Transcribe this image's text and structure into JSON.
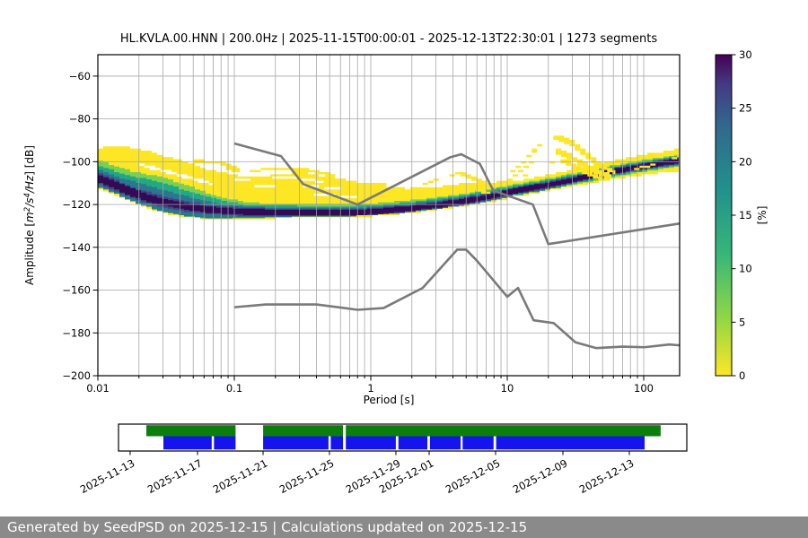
{
  "chart_data": {
    "type": "heatmap",
    "title": "HL.KVLA.00.HNN | 200.0Hz | 2025-11-15T00:00:01 - 2025-12-13T22:30:01 | 1273 segments",
    "station": "HL.KVLA.00.HNN",
    "sampling_rate": "200.0Hz",
    "time_range": "2025-11-15T00:00:01 - 2025-12-13T22:30:01",
    "segments": 1273,
    "xlabel": "Period [s]",
    "ylabel_parts": [
      {
        "t": "Amplitude [",
        "i": 0,
        "s": 0
      },
      {
        "t": "m",
        "i": 1,
        "s": 0
      },
      {
        "t": "2",
        "i": 1,
        "s": 1
      },
      {
        "t": "/",
        "i": 1,
        "s": 0
      },
      {
        "t": "s",
        "i": 1,
        "s": 0
      },
      {
        "t": "4",
        "i": 1,
        "s": 1
      },
      {
        "t": "/",
        "i": 1,
        "s": 0
      },
      {
        "t": "Hz",
        "i": 1,
        "s": 0
      },
      {
        "t": "] [dB]",
        "i": 0,
        "s": 0
      }
    ],
    "xlim": [
      0.01,
      183
    ],
    "ylim": [
      -200,
      -50
    ],
    "grid": true,
    "xticks": [
      {
        "v": 0.01,
        "label": "0.01"
      },
      {
        "v": 0.1,
        "label": "0.1"
      },
      {
        "v": 1,
        "label": "1"
      },
      {
        "v": 10,
        "label": "10"
      },
      {
        "v": 100,
        "label": "100"
      }
    ],
    "yticks": [
      {
        "v": -60,
        "label": "−60"
      },
      {
        "v": -80,
        "label": "−80"
      },
      {
        "v": -100,
        "label": "−100"
      },
      {
        "v": -120,
        "label": "−120"
      },
      {
        "v": -140,
        "label": "−140"
      },
      {
        "v": -160,
        "label": "−160"
      },
      {
        "v": -180,
        "label": "−180"
      },
      {
        "v": -200,
        "label": "−200"
      }
    ],
    "colorbar": {
      "label": "[%]",
      "min": 0,
      "max": 30,
      "ticks": [
        "0",
        "5",
        "10",
        "15",
        "20",
        "25",
        "30"
      ],
      "stops": [
        [
          0,
          "#fde725"
        ],
        [
          0.18,
          "#90d743"
        ],
        [
          0.38,
          "#35b779"
        ],
        [
          0.58,
          "#21918c"
        ],
        [
          0.78,
          "#31688e"
        ],
        [
          0.91,
          "#443983"
        ],
        [
          1,
          "#440154"
        ]
      ]
    },
    "noise_models": {
      "color": "#7a7a7a",
      "width": 2.6,
      "nhnm": [
        [
          0.1,
          -91.5
        ],
        [
          0.22,
          -97.4
        ],
        [
          0.32,
          -110.5
        ],
        [
          0.8,
          -120.0
        ],
        [
          3.8,
          -98.0
        ],
        [
          4.6,
          -96.5
        ],
        [
          6.3,
          -101.0
        ],
        [
          7.9,
          -113.5
        ],
        [
          15.4,
          -120.0
        ],
        [
          20.0,
          -138.5
        ],
        [
          183,
          -128.9
        ]
      ],
      "nlnm": [
        [
          0.1,
          -168.0
        ],
        [
          0.17,
          -166.7
        ],
        [
          0.4,
          -166.7
        ],
        [
          0.8,
          -169.2
        ],
        [
          1.24,
          -168.4
        ],
        [
          2.4,
          -159.0
        ],
        [
          4.3,
          -141.1
        ],
        [
          5.0,
          -141.1
        ],
        [
          6.0,
          -146.3
        ],
        [
          10.0,
          -163.1
        ],
        [
          12.0,
          -159.0
        ],
        [
          15.6,
          -174.1
        ],
        [
          21.9,
          -175.4
        ],
        [
          31.6,
          -184.4
        ],
        [
          45.0,
          -187.1
        ],
        [
          70.0,
          -186.4
        ],
        [
          101.0,
          -186.7
        ],
        [
          154.0,
          -185.4
        ],
        [
          183,
          -185.8
        ]
      ]
    },
    "histogram": {
      "periods": [
        0.01,
        0.013,
        0.018,
        0.028,
        0.045,
        0.07,
        0.12,
        0.3,
        0.7,
        1.0,
        1.8,
        3.0,
        5.0,
        8.0,
        12,
        20,
        35,
        60,
        100,
        180
      ],
      "mode": [
        -107.5,
        -110.5,
        -114.5,
        -118.5,
        -121.0,
        -122.5,
        -123.4,
        -123.8,
        -123.8,
        -123.4,
        -122.0,
        -120.3,
        -118.3,
        -115.8,
        -113.3,
        -110.8,
        -107.5,
        -104.5,
        -102.0,
        -99.5
      ],
      "env_top": [
        -93.5,
        -92.8,
        -93.5,
        -97.0,
        -101.0,
        -104.5,
        -107.5,
        -104.8,
        -109.0,
        -111.0,
        -112.5,
        -111.5,
        -110.0,
        -109.5,
        -108.5,
        -106.0,
        -102.5,
        -99.0,
        -96.5,
        -94.0
      ],
      "env_bot": [
        -111.5,
        -114.5,
        -118.5,
        -123.0,
        -126.0,
        -127.0,
        -126.8,
        -126.3,
        -126.0,
        -125.6,
        -124.4,
        -122.8,
        -121.0,
        -118.8,
        -116.4,
        -113.8,
        -111.0,
        -108.5,
        -106.5,
        -104.5
      ],
      "bands": [
        {
          "name": "yellow",
          "color": "#fde725",
          "use_env": true
        },
        {
          "name": "yellow-green",
          "color": "#7ad151",
          "up": [
            8.0,
            8.5,
            9.5,
            11.5,
            9.5,
            6.5,
            4.2,
            4.0,
            3.9,
            3.9,
            3.8,
            3.8,
            3.8,
            3.7,
            3.3,
            3.3,
            3.0,
            3.0,
            3.0,
            3.0
          ],
          "dn": [
            5.4,
            5.8,
            6.6,
            7.4,
            7.7,
            6.9,
            4.9,
            3.9,
            3.7,
            3.6,
            3.6,
            3.6,
            3.6,
            3.6,
            3.4,
            3.4,
            3.0,
            3.0,
            3.0,
            3.0
          ]
        },
        {
          "name": "green",
          "color": "#22a884",
          "up": [
            5.5,
            6.0,
            7.5,
            9.0,
            7.0,
            5.0,
            3.2,
            3.1,
            3.1,
            3.1,
            3.1,
            3.1,
            3.0,
            3.0,
            2.7,
            2.7,
            2.4,
            2.4,
            2.4,
            2.4
          ],
          "dn": [
            4.4,
            4.8,
            5.4,
            6.2,
            6.5,
            5.8,
            4.0,
            3.2,
            3.0,
            3.0,
            3.0,
            3.0,
            3.0,
            3.0,
            2.8,
            2.8,
            2.5,
            2.5,
            2.5,
            2.5
          ]
        },
        {
          "name": "teal",
          "color": "#2a788e",
          "up": [
            3.4,
            3.6,
            5.0,
            5.5,
            4.5,
            3.2,
            2.3,
            2.3,
            2.3,
            2.3,
            2.3,
            2.3,
            2.3,
            2.3,
            2.1,
            2.1,
            1.9,
            1.9,
            1.9,
            1.9
          ],
          "dn": [
            3.3,
            3.5,
            3.9,
            5.0,
            5.2,
            4.3,
            3.0,
            2.5,
            2.4,
            2.4,
            2.4,
            2.4,
            2.4,
            2.4,
            2.2,
            2.2,
            2.0,
            2.0,
            2.0,
            2.0
          ]
        },
        {
          "name": "blue",
          "color": "#414487",
          "up": [
            2.0,
            2.0,
            2.2,
            2.6,
            2.4,
            1.9,
            1.8,
            1.8,
            1.8,
            1.8,
            1.8,
            1.8,
            1.8,
            1.8,
            1.7,
            1.7,
            1.6,
            1.6,
            1.6,
            1.6
          ],
          "dn": [
            2.1,
            2.1,
            2.1,
            2.3,
            2.3,
            2.0,
            1.9,
            1.9,
            1.9,
            1.9,
            1.9,
            1.9,
            1.9,
            1.9,
            1.8,
            1.8,
            1.7,
            1.7,
            1.7,
            1.7
          ]
        },
        {
          "name": "core",
          "color": "#330a54",
          "up": 1.3,
          "dn": 1.4
        }
      ]
    },
    "streaks": [
      {
        "c": "#fde725",
        "w": 1.3,
        "pts": [
          [
            0.02,
            -96.5
          ],
          [
            0.032,
            -98
          ],
          [
            0.05,
            -101.5
          ]
        ]
      },
      {
        "c": "#fde725",
        "w": 1.3,
        "pts": [
          [
            0.032,
            -101.5
          ],
          [
            0.05,
            -99
          ],
          [
            0.08,
            -100
          ],
          [
            0.11,
            -104
          ]
        ]
      },
      {
        "c": "#fde725",
        "w": 1.3,
        "pts": [
          [
            0.13,
            -104
          ],
          [
            0.2,
            -102.5
          ],
          [
            0.35,
            -103.5
          ],
          [
            0.55,
            -106
          ]
        ]
      },
      {
        "c": "#fde725",
        "w": 1.3,
        "pts": [
          [
            0.5,
            -107
          ],
          [
            0.8,
            -109.5
          ],
          [
            1.3,
            -110.5
          ]
        ]
      },
      {
        "c": "#fde725",
        "w": 1.3,
        "pts": [
          [
            2,
            -111.5
          ],
          [
            3,
            -108
          ],
          [
            4.5,
            -104.5
          ],
          [
            6,
            -107.5
          ],
          [
            8,
            -111
          ]
        ]
      },
      {
        "c": "#fde725",
        "w": 1.3,
        "pts": [
          [
            2.6,
            -114
          ],
          [
            4,
            -110.5
          ],
          [
            5.5,
            -111.5
          ],
          [
            7.5,
            -114
          ]
        ]
      },
      {
        "c": "#fde725",
        "w": 1.4,
        "pts": [
          [
            8,
            -111.5
          ],
          [
            12,
            -102
          ],
          [
            17,
            -92
          ],
          [
            22,
            -87.5
          ],
          [
            28,
            -89.5
          ],
          [
            36,
            -95
          ],
          [
            48,
            -101
          ],
          [
            62,
            -104.5
          ]
        ]
      },
      {
        "c": "#fde725",
        "w": 1.3,
        "pts": [
          [
            10,
            -109
          ],
          [
            15,
            -99.5
          ],
          [
            22,
            -93.5
          ],
          [
            30,
            -97.5
          ],
          [
            42,
            -103
          ],
          [
            58,
            -106.5
          ]
        ]
      },
      {
        "c": "#fde725",
        "w": 1.3,
        "pts": [
          [
            13,
            -106.5
          ],
          [
            19,
            -100.5
          ],
          [
            26,
            -98.5
          ],
          [
            36,
            -104
          ],
          [
            50,
            -107.5
          ]
        ]
      },
      {
        "c": "#fde725",
        "w": 1.3,
        "pts": [
          [
            70,
            -100
          ],
          [
            110,
            -97
          ],
          [
            150,
            -95.5
          ],
          [
            180,
            -93.5
          ]
        ]
      },
      {
        "c": "#fde725",
        "w": 1.3,
        "pts": [
          [
            85,
            -103
          ],
          [
            130,
            -100
          ],
          [
            180,
            -97
          ]
        ]
      },
      {
        "c": "#ffffff",
        "w": 0.8,
        "pts": [
          [
            0.1,
            -108
          ],
          [
            0.25,
            -107
          ],
          [
            0.45,
            -109
          ]
        ]
      },
      {
        "c": "#ffffff",
        "w": 0.7,
        "pts": [
          [
            0.14,
            -111
          ],
          [
            0.3,
            -110.5
          ],
          [
            0.6,
            -112.5
          ]
        ]
      },
      {
        "c": "#ffffff",
        "w": 0.7,
        "pts": [
          [
            0.35,
            -114.5
          ],
          [
            0.8,
            -116.5
          ]
        ]
      },
      {
        "c": "#ffffff",
        "w": 0.7,
        "pts": [
          [
            1.5,
            -113.5
          ],
          [
            2.5,
            -111
          ]
        ]
      },
      {
        "c": "#ffffff",
        "w": 0.7,
        "pts": [
          [
            0.02,
            -101
          ],
          [
            0.04,
            -106
          ],
          [
            0.07,
            -110
          ]
        ]
      }
    ],
    "timeline": {
      "green": {
        "color": "#0c7e0c",
        "segments": [
          [
            0.049,
            0.206
          ],
          [
            0.2545,
            0.395
          ],
          [
            0.4,
            0.954
          ]
        ]
      },
      "blue": {
        "color": "#1414ee",
        "segments": [
          [
            0.079,
            0.164
          ],
          [
            0.168,
            0.206
          ],
          [
            0.2545,
            0.3695
          ],
          [
            0.3735,
            0.395
          ],
          [
            0.4,
            0.488
          ],
          [
            0.4925,
            0.5435
          ],
          [
            0.548,
            0.602
          ],
          [
            0.6055,
            0.66
          ],
          [
            0.6645,
            0.9258
          ]
        ]
      },
      "dates": [
        {
          "label": "2025-11-13",
          "f": 0.0205
        },
        {
          "label": "2025-11-17",
          "f": 0.139
        },
        {
          "label": "2025-11-21",
          "f": 0.2544
        },
        {
          "label": "2025-11-25",
          "f": 0.3712
        },
        {
          "label": "2025-11-29",
          "f": 0.4881
        },
        {
          "label": "2025-12-01",
          "f": 0.5466
        },
        {
          "label": "2025-12-05",
          "f": 0.6635
        },
        {
          "label": "2025-12-09",
          "f": 0.782
        },
        {
          "label": "2025-12-13",
          "f": 0.8989
        }
      ]
    }
  },
  "footer": {
    "text": "Generated by SeedPSD on 2025-12-15 | Calculations updated on 2025-12-15",
    "bg": "#8a8a8a",
    "fg": "#ffffff"
  }
}
